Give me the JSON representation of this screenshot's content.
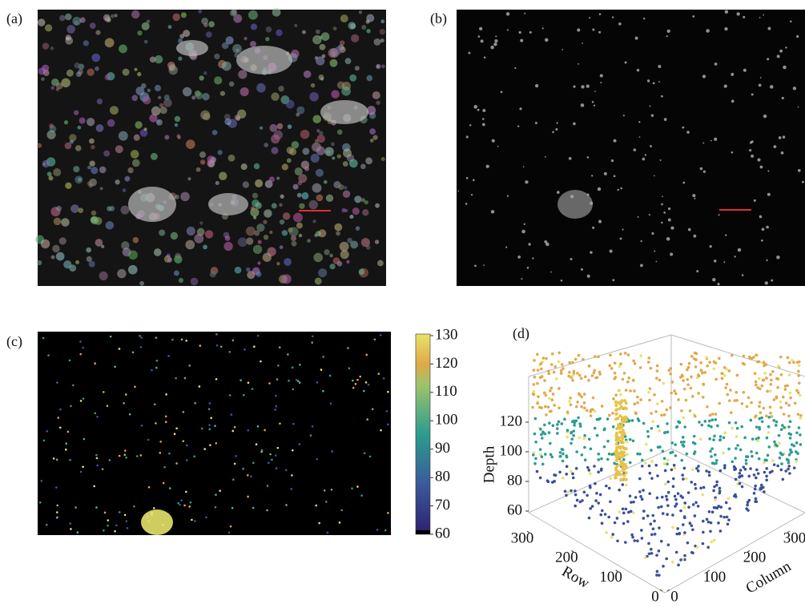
{
  "panels": [
    {
      "label": "(a)"
    },
    {
      "label": "(b)"
    },
    {
      "label": "(c)",
      "colorbar": {
        "ticks": [
          130,
          120,
          110,
          100,
          90,
          80,
          70,
          60
        ]
      }
    },
    {
      "label": "(d)",
      "z_label": "Depth",
      "z_ticks": [
        60,
        80,
        100,
        120
      ],
      "row_label": "Row",
      "row_ticks": [
        0,
        100,
        200,
        300
      ],
      "column_label": "Column",
      "column_ticks": [
        0,
        100,
        200,
        300
      ]
    }
  ]
}
